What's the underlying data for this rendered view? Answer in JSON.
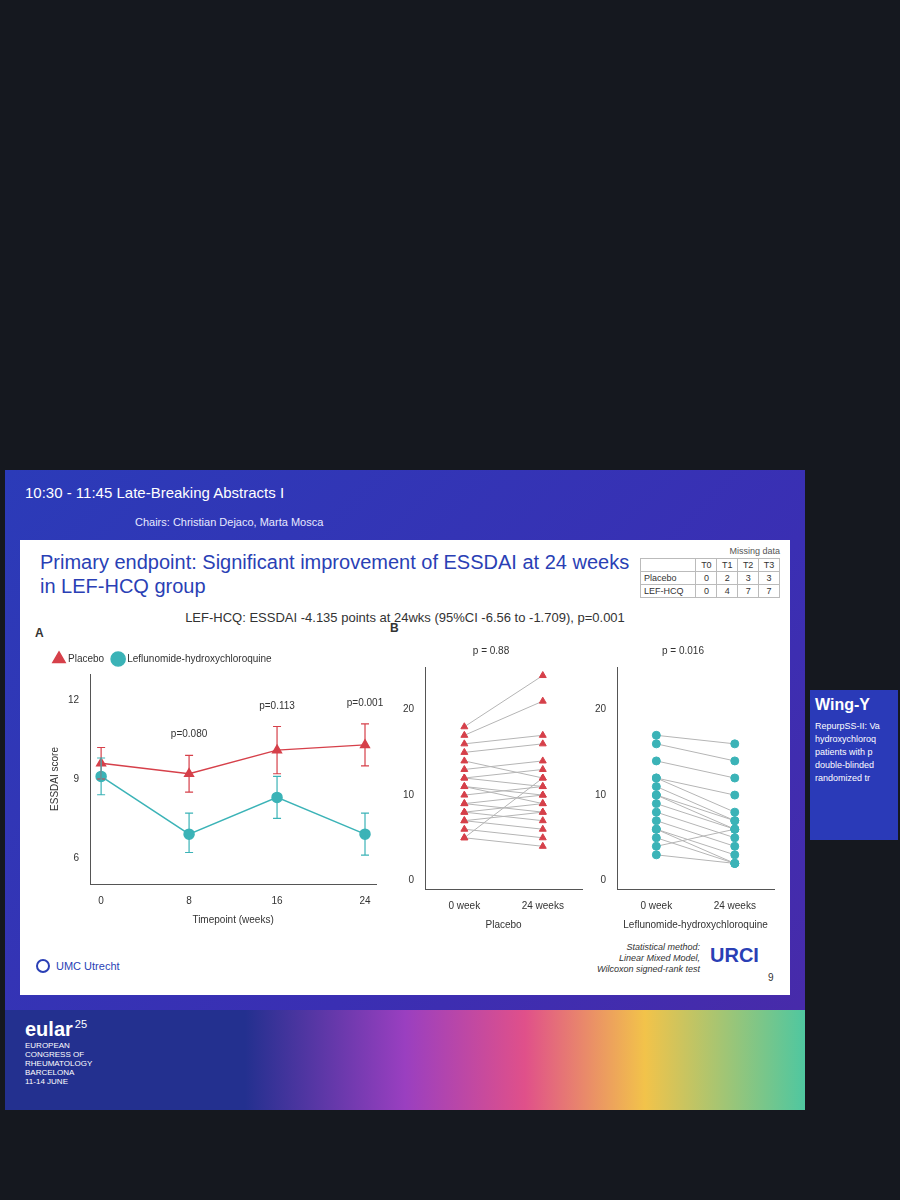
{
  "header": {
    "session": "10:30 - 11:45 Late-Breaking Abstracts I",
    "chairs": "Chairs: Christian Dejaco, Marta Mosca"
  },
  "slide": {
    "title": "Primary endpoint: Significant improvement of ESSDAI at 24 weeks in LEF-HCQ group",
    "subtitle": "LEF-HCQ: ESSDAI -4.135 points at 24wks (95%CI -6.56 to -1.709), p=0.001",
    "missing_data": {
      "title": "Missing data",
      "columns": [
        "T0",
        "T1",
        "T2",
        "T3"
      ],
      "rows": [
        {
          "name": "Placebo",
          "values": [
            0,
            2,
            3,
            3
          ]
        },
        {
          "name": "LEF-HCQ",
          "values": [
            0,
            4,
            7,
            7
          ]
        }
      ]
    },
    "logo": "UMC Utrecht",
    "method": [
      "Statistical method:",
      "Linear Mixed Model,",
      "Wilcoxon signed-rank test"
    ],
    "brand": "URCI",
    "page": 9
  },
  "speaker": {
    "name": "Wing-Y",
    "lines": [
      "RepurpSS-II: Va",
      "hydroxychloroq",
      "patients with p",
      "double-blinded",
      "randomized tr"
    ]
  },
  "congress": {
    "name": "eular",
    "edition": "25",
    "lines": [
      "EUROPEAN",
      "CONGRESS OF",
      "RHEUMATOLOGY",
      "BARCELONA",
      "11-14 JUNE"
    ]
  },
  "chart_data": [
    {
      "panel": "A",
      "type": "line",
      "x_label": "Timepoint (weeks)",
      "y_label": "ESSDAI score",
      "x": [
        0,
        8,
        16,
        24
      ],
      "series": [
        {
          "name": "Placebo",
          "color": "#d6404a",
          "marker": "triangle",
          "values": [
            9.6,
            9.2,
            10.1,
            10.3
          ],
          "lower": [
            9.0,
            8.5,
            9.2,
            9.5
          ],
          "upper": [
            10.2,
            9.9,
            11.0,
            11.1
          ]
        },
        {
          "name": "Leflunomide-hydroxychloroquine",
          "color": "#3bb3b7",
          "marker": "circle",
          "values": [
            9.1,
            6.9,
            8.3,
            6.9
          ],
          "lower": [
            8.4,
            6.2,
            7.5,
            6.1
          ],
          "upper": [
            9.8,
            7.7,
            9.1,
            7.7
          ]
        }
      ],
      "xlim": [
        -1,
        25
      ],
      "xticks": [
        0,
        8,
        16,
        24
      ],
      "ylim": [
        5,
        13
      ],
      "yticks": [
        6,
        9,
        12
      ],
      "grid": false,
      "legend": "top left",
      "annotations": [
        {
          "x": 8,
          "y": 10.5,
          "text": "p=0.080"
        },
        {
          "x": 16,
          "y": 11.6,
          "text": "p=0.113"
        },
        {
          "x": 24,
          "y": 11.7,
          "text": "p=0.001"
        }
      ]
    },
    {
      "panel": "B",
      "type": "paired",
      "title": "p = 0.88",
      "categories": [
        "0 week",
        "24 weeks"
      ],
      "x_label": "Placebo",
      "color": "#d6404a",
      "marker": "triangle",
      "values": [
        [
          18,
          24
        ],
        [
          17,
          21
        ],
        [
          16,
          17
        ],
        [
          15,
          16
        ],
        [
          14,
          12
        ],
        [
          13,
          14
        ],
        [
          12,
          13
        ],
        [
          12,
          11
        ],
        [
          11,
          10
        ],
        [
          11,
          9
        ],
        [
          10,
          11
        ],
        [
          9,
          8
        ],
        [
          9,
          10
        ],
        [
          8,
          7
        ],
        [
          8,
          9
        ],
        [
          7,
          6
        ],
        [
          7,
          8
        ],
        [
          6,
          5
        ],
        [
          5,
          4
        ],
        [
          5,
          12
        ]
      ],
      "ylim": [
        -1,
        25
      ],
      "yticks": [
        0,
        10,
        20
      ],
      "grid": false
    },
    {
      "type": "paired",
      "title": "p = 0.016",
      "categories": [
        "0 week",
        "24 weeks"
      ],
      "x_label": "Leflunomide-hydroxychloroquine",
      "color": "#3bb3b7",
      "marker": "circle",
      "values": [
        [
          17,
          16
        ],
        [
          16,
          14
        ],
        [
          14,
          12
        ],
        [
          12,
          10
        ],
        [
          12,
          8
        ],
        [
          11,
          7
        ],
        [
          10,
          7
        ],
        [
          10,
          6
        ],
        [
          9,
          6
        ],
        [
          8,
          5
        ],
        [
          7,
          4
        ],
        [
          6,
          3
        ],
        [
          6,
          2
        ],
        [
          5,
          2
        ],
        [
          4,
          6
        ],
        [
          3,
          2
        ]
      ],
      "ylim": [
        -1,
        25
      ],
      "yticks": [
        0,
        10,
        20
      ],
      "grid": false
    }
  ]
}
